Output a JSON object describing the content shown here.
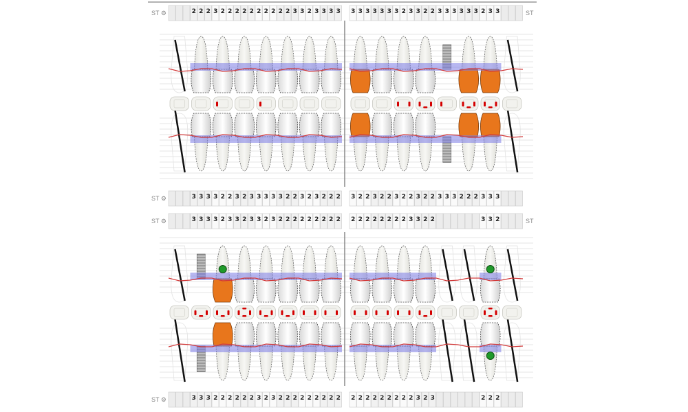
{
  "colors": {
    "crown": "#e8761c",
    "gum_band": "#7b7be6",
    "gum_line": "#d23a3a",
    "marker": "#1f9a2a",
    "mark": "#d40000",
    "implant": "#9a9a9a"
  },
  "panels": [
    {
      "top_numbers": {
        "label_left": "ST",
        "label_right": "ST",
        "left": [
          "",
          "",
          "",
          "2",
          "2",
          "2",
          "3",
          "2",
          "2",
          "2",
          "2",
          "2",
          "2",
          "2",
          "2",
          "2",
          "2",
          "3",
          "3",
          "2",
          "3",
          "3",
          "3",
          "3"
        ],
        "right": [
          "3",
          "3",
          "3",
          "3",
          "3",
          "3",
          "3",
          "2",
          "3",
          "3",
          "2",
          "2",
          "3",
          "3",
          "3",
          "3",
          "3",
          "3",
          "2",
          "3",
          "3",
          "",
          "",
          ""
        ]
      },
      "bottom_numbers": {
        "label_left": "ST",
        "label_right": "",
        "left": [
          "",
          "",
          "",
          "3",
          "3",
          "3",
          "3",
          "2",
          "2",
          "3",
          "2",
          "3",
          "3",
          "3",
          "3",
          "3",
          "2",
          "2",
          "3",
          "2",
          "3",
          "2",
          "2",
          "2"
        ],
        "right": [
          "3",
          "2",
          "2",
          "3",
          "2",
          "2",
          "3",
          "2",
          "2",
          "3",
          "2",
          "2",
          "3",
          "3",
          "3",
          "2",
          "2",
          "2",
          "3",
          "3",
          "3",
          "",
          "",
          ""
        ]
      },
      "upper_left": [
        {
          "type": "missing"
        },
        {
          "type": "normal"
        },
        {
          "type": "normal"
        },
        {
          "type": "normal"
        },
        {
          "type": "normal"
        },
        {
          "type": "normal"
        },
        {
          "type": "normal"
        },
        {
          "type": "normal"
        }
      ],
      "upper_right": [
        {
          "type": "crown"
        },
        {
          "type": "normal"
        },
        {
          "type": "normal"
        },
        {
          "type": "normal"
        },
        {
          "type": "implant"
        },
        {
          "type": "crown"
        },
        {
          "type": "crown"
        },
        {
          "type": "missing"
        }
      ],
      "lower_left": [
        {
          "type": "missing"
        },
        {
          "type": "normal"
        },
        {
          "type": "normal"
        },
        {
          "type": "normal"
        },
        {
          "type": "normal"
        },
        {
          "type": "normal"
        },
        {
          "type": "normal"
        },
        {
          "type": "normal"
        }
      ],
      "lower_right": [
        {
          "type": "crown"
        },
        {
          "type": "normal"
        },
        {
          "type": "normal"
        },
        {
          "type": "normal"
        },
        {
          "type": "implant"
        },
        {
          "type": "crown"
        },
        {
          "type": "crown"
        },
        {
          "type": "missing"
        }
      ],
      "occlusal_left": [
        0,
        0,
        1,
        0,
        1,
        0,
        0,
        0
      ],
      "occlusal_right": [
        0,
        0,
        2,
        3,
        1,
        3,
        3,
        0
      ]
    },
    {
      "top_numbers": {
        "label_left": "ST",
        "label_right": "ST",
        "left": [
          "",
          "",
          "",
          "3",
          "3",
          "3",
          "3",
          "2",
          "3",
          "3",
          "2",
          "3",
          "3",
          "2",
          "3",
          "2",
          "2",
          "2",
          "2",
          "2",
          "2",
          "2",
          "2",
          "2"
        ],
        "right": [
          "2",
          "2",
          "2",
          "2",
          "2",
          "2",
          "2",
          "2",
          "3",
          "3",
          "2",
          "2",
          "",
          "",
          "",
          "",
          "",
          "",
          "3",
          "3",
          "2",
          "",
          "",
          ""
        ]
      },
      "bottom_numbers": {
        "label_left": "ST",
        "label_right": "",
        "left": [
          "",
          "",
          "",
          "3",
          "3",
          "3",
          "2",
          "2",
          "2",
          "2",
          "2",
          "2",
          "3",
          "2",
          "3",
          "2",
          "2",
          "2",
          "2",
          "2",
          "2",
          "2",
          "2",
          "2"
        ],
        "right": [
          "2",
          "2",
          "2",
          "2",
          "2",
          "2",
          "2",
          "2",
          "2",
          "3",
          "2",
          "3",
          "",
          "",
          "",
          "",
          "",
          "",
          "2",
          "2",
          "2",
          "",
          "",
          ""
        ]
      },
      "upper_left": [
        {
          "type": "missing"
        },
        {
          "type": "implant"
        },
        {
          "type": "crown",
          "marker": "above"
        },
        {
          "type": "normal"
        },
        {
          "type": "normal"
        },
        {
          "type": "normal"
        },
        {
          "type": "normal"
        },
        {
          "type": "normal"
        }
      ],
      "upper_right": [
        {
          "type": "normal"
        },
        {
          "type": "normal"
        },
        {
          "type": "normal"
        },
        {
          "type": "normal"
        },
        {
          "type": "missing"
        },
        {
          "type": "missing"
        },
        {
          "type": "normal",
          "marker": "above"
        },
        {
          "type": "missing"
        }
      ],
      "lower_left": [
        {
          "type": "missing"
        },
        {
          "type": "implant"
        },
        {
          "type": "crown"
        },
        {
          "type": "normal"
        },
        {
          "type": "normal"
        },
        {
          "type": "normal"
        },
        {
          "type": "normal"
        },
        {
          "type": "normal"
        }
      ],
      "lower_right": [
        {
          "type": "normal"
        },
        {
          "type": "normal"
        },
        {
          "type": "normal"
        },
        {
          "type": "normal"
        },
        {
          "type": "missing"
        },
        {
          "type": "missing"
        },
        {
          "type": "normal",
          "marker": "below"
        },
        {
          "type": "missing"
        }
      ],
      "occlusal_left": [
        0,
        3,
        3,
        4,
        3,
        3,
        2,
        2
      ],
      "occlusal_right": [
        2,
        2,
        2,
        3,
        0,
        0,
        4,
        0
      ]
    }
  ]
}
